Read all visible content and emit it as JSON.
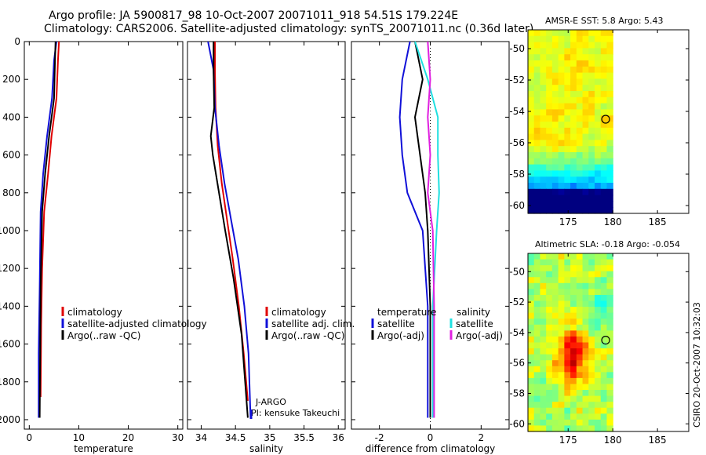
{
  "header": {
    "line1": "Argo profile: JA 5900817_98 10-Oct-2007 20071011_918 54.51S 179.224E",
    "line2": "Climatology: CARS2006. Satellite-adjusted climatology: synTS_20071011.nc (0.36d later)"
  },
  "side_label": "CSIRO 20-Oct-2007 10:32:03",
  "colors": {
    "red": "#e00000",
    "blue": "#1010d8",
    "black": "#000000",
    "cyan": "#20e0e0",
    "magenta": "#e020e0"
  },
  "chart_data": [
    {
      "type": "line",
      "xlabel": "temperature",
      "ylabel": "",
      "xlim": [
        -1,
        31
      ],
      "ylim": [
        2050,
        0
      ],
      "xticks": [
        "0",
        "10",
        "20",
        "30"
      ],
      "xtick_values": [
        0,
        10,
        20,
        30
      ],
      "yticks": [
        "0",
        "200",
        "400",
        "600",
        "800",
        "1000",
        "1200",
        "1400",
        "1600",
        "1800",
        "2000"
      ],
      "ytick_values": [
        0,
        200,
        400,
        600,
        800,
        1000,
        1200,
        1400,
        1600,
        1800,
        2000
      ],
      "legend": [
        "climatology",
        "satellite-adjusted climatology",
        "Argo(..raw -QC)"
      ],
      "legend_placement": "lower-left",
      "series": [
        {
          "name": "climatology",
          "color": "red",
          "x": [
            6.0,
            5.8,
            5.5,
            4.5,
            3.8,
            3.0,
            2.6,
            2.4,
            2.3
          ],
          "y": [
            0,
            100,
            300,
            500,
            700,
            900,
            1200,
            1500,
            1880
          ]
        },
        {
          "name": "satellite-adjusted climatology",
          "color": "blue",
          "x": [
            5.5,
            5.0,
            4.6,
            3.6,
            2.8,
            2.3,
            2.1,
            1.9,
            1.9
          ],
          "y": [
            0,
            100,
            300,
            500,
            700,
            900,
            1300,
            1650,
            1990
          ]
        },
        {
          "name": "Argo(..raw -QC)",
          "color": "black",
          "x": [
            5.3,
            5.2,
            5.0,
            4.0,
            3.2,
            2.6,
            2.3,
            2.1
          ],
          "y": [
            0,
            100,
            300,
            500,
            700,
            900,
            1300,
            1990
          ]
        }
      ]
    },
    {
      "type": "line",
      "xlabel": "salinity",
      "ylabel": "",
      "xlim": [
        33.8,
        36.1
      ],
      "ylim": [
        2050,
        0
      ],
      "xticks": [
        "34",
        "34.5",
        "35",
        "35.5",
        "36"
      ],
      "xtick_values": [
        34,
        34.5,
        35,
        35.5,
        36
      ],
      "legend": [
        "climatology",
        "satellite adj. clim.",
        "Argo(..raw -QC)"
      ],
      "legend_placement": "lower-right",
      "annotations": [
        "J-ARGO",
        "PI: kensuke Takeuchi"
      ],
      "series": [
        {
          "name": "climatology",
          "color": "red",
          "x": [
            34.2,
            34.2,
            34.21,
            34.24,
            34.3,
            34.38,
            34.46,
            34.55,
            34.62,
            34.68
          ],
          "y": [
            0,
            150,
            350,
            550,
            750,
            950,
            1150,
            1400,
            1650,
            1900
          ]
        },
        {
          "name": "satellite adj. clim.",
          "color": "blue",
          "x": [
            34.1,
            34.18,
            34.2,
            34.26,
            34.34,
            34.44,
            34.54,
            34.63,
            34.69,
            34.72
          ],
          "y": [
            0,
            150,
            350,
            550,
            750,
            950,
            1150,
            1400,
            1650,
            1990
          ]
        },
        {
          "name": "Argo(..raw -QC)",
          "color": "black",
          "x": [
            34.18,
            34.18,
            34.19,
            34.14,
            34.17,
            34.26,
            34.35,
            34.47,
            34.59,
            34.68
          ],
          "y": [
            0,
            150,
            350,
            500,
            600,
            800,
            1000,
            1250,
            1550,
            1990
          ]
        }
      ]
    },
    {
      "type": "line",
      "xlabel": "difference from climatology",
      "ylabel": "",
      "xlim": [
        -3.1,
        3.1
      ],
      "ylim": [
        2050,
        0
      ],
      "xticks": [
        "-2",
        "0",
        "2"
      ],
      "xtick_values": [
        -2,
        0,
        2
      ],
      "legend_groups": [
        {
          "title": "temperature",
          "items": [
            "satellite",
            "Argo(-adj)"
          ]
        },
        {
          "title": "salinity",
          "items": [
            "satellite",
            "Argo(-adj)"
          ]
        }
      ],
      "legend_placement": "lower-center",
      "series": [
        {
          "name": "temperature satellite",
          "color": "blue",
          "x": [
            -0.8,
            -1.1,
            -1.2,
            -1.1,
            -0.9,
            -0.3,
            -0.1,
            -0.1
          ],
          "y": [
            0,
            200,
            400,
            600,
            800,
            1000,
            1400,
            1990
          ]
        },
        {
          "name": "temperature Argo(-adj)",
          "color": "black",
          "x": [
            -0.6,
            -0.3,
            -0.6,
            -0.4,
            -0.2,
            -0.1,
            0.0,
            0.0
          ],
          "y": [
            0,
            200,
            400,
            600,
            800,
            1000,
            1400,
            1990
          ]
        },
        {
          "name": "salinity satellite",
          "color": "cyan",
          "x": [
            -0.6,
            -0.1,
            0.3,
            0.3,
            0.35,
            0.25,
            0.1,
            0.1
          ],
          "y": [
            0,
            200,
            400,
            600,
            800,
            1000,
            1400,
            1990
          ]
        },
        {
          "name": "salinity Argo(-adj)",
          "color": "magenta",
          "x": [
            -0.1,
            0.0,
            -0.1,
            0.0,
            -0.1,
            0.1,
            0.15,
            0.15
          ],
          "y": [
            0,
            200,
            400,
            600,
            800,
            1000,
            1400,
            1990
          ]
        }
      ]
    },
    {
      "type": "heatmap",
      "title": "AMSR-E SST: 5.8  Argo: 5.43",
      "xlim": [
        170.5,
        188.5
      ],
      "ylim": [
        -60.5,
        -48.8
      ],
      "xticks": [
        "175",
        "180",
        "185"
      ],
      "xtick_values": [
        175,
        180,
        185
      ],
      "yticks": [
        "-50",
        "-52",
        "-54",
        "-56",
        "-58",
        "-60"
      ],
      "ytick_values": [
        -50,
        -52,
        -54,
        -56,
        -58,
        -60
      ],
      "data_extent_lon": [
        170.5,
        180
      ],
      "marker": {
        "lon": 179.2,
        "lat": -54.5
      }
    },
    {
      "type": "heatmap",
      "title": "Altimetric SLA: -0.18  Argo: -0.054",
      "xlim": [
        170.5,
        188.5
      ],
      "ylim": [
        -60.5,
        -48.8
      ],
      "xticks": [
        "175",
        "180",
        "185"
      ],
      "xtick_values": [
        175,
        180,
        185
      ],
      "yticks": [
        "-50",
        "-52",
        "-54",
        "-56",
        "-58",
        "-60"
      ],
      "ytick_values": [
        -50,
        -52,
        -54,
        -56,
        -58,
        -60
      ],
      "data_extent_lon": [
        170.5,
        180
      ],
      "marker": {
        "lon": 179.2,
        "lat": -54.5
      }
    }
  ],
  "legend_title_salinity": "salinity",
  "legend_title_temperature": "temperature"
}
